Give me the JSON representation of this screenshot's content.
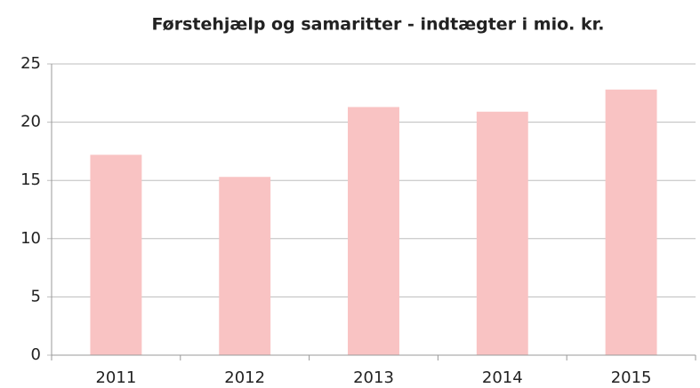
{
  "chart_data": {
    "type": "bar",
    "title": "Førstehjælp og samaritter - indtægter i mio. kr.",
    "categories": [
      "2011",
      "2012",
      "2013",
      "2014",
      "2015"
    ],
    "values": [
      17.2,
      15.3,
      21.3,
      20.9,
      22.8
    ],
    "color": "#f9c3c3",
    "ylim": [
      0,
      25
    ],
    "yticks": [
      0,
      5,
      10,
      15,
      20,
      25
    ],
    "grid": true
  }
}
